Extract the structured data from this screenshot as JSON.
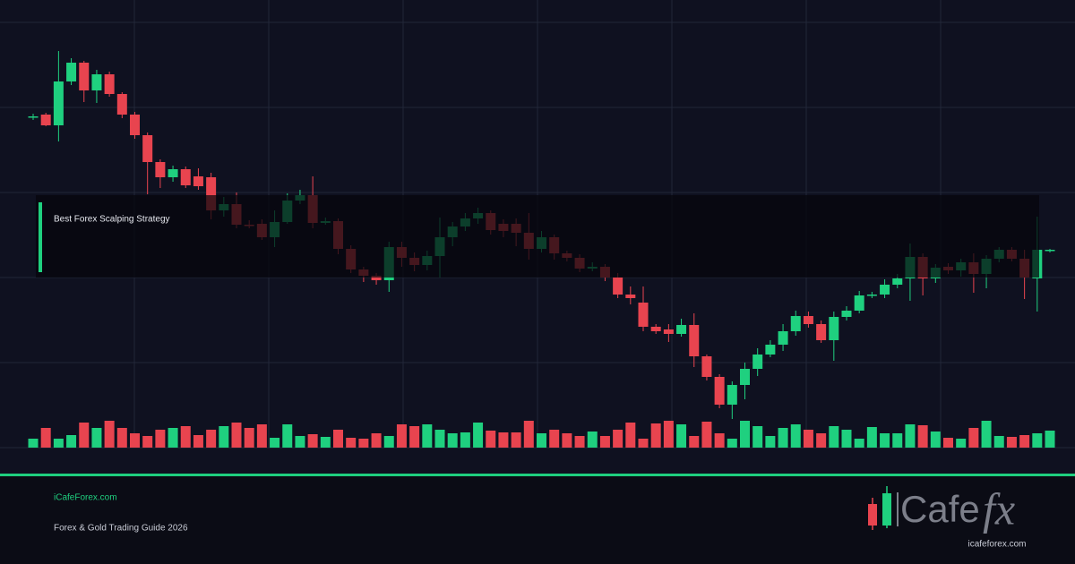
{
  "chart_data": {
    "type": "candlestick",
    "annotation": "Best Forex Scalping Strategy",
    "up_color": "#1fd07f",
    "down_color": "#e8444f",
    "ylim": [
      0,
      475
    ],
    "vlim": [
      0,
      40
    ],
    "grid": true,
    "open": [
      370,
      372,
      360,
      409,
      430,
      399,
      417,
      395,
      372,
      349,
      319,
      302,
      311,
      303,
      302,
      265,
      272,
      249,
      250,
      235,
      252,
      276,
      282,
      251,
      253,
      222,
      199,
      192,
      187,
      224,
      212,
      204,
      214,
      235,
      247,
      256,
      262,
      250,
      250,
      240,
      222,
      235,
      217,
      212,
      200,
      202,
      190,
      171,
      162,
      135,
      132,
      127,
      137,
      102,
      79,
      48,
      70,
      88,
      104,
      115,
      130,
      147,
      138,
      120,
      146,
      153,
      170,
      171,
      182,
      189,
      213,
      189,
      202,
      198,
      207,
      194,
      211,
      221,
      211,
      189,
      220
    ],
    "high": [
      373,
      374,
      443,
      435,
      432,
      422,
      420,
      397,
      375,
      352,
      322,
      315,
      314,
      312,
      307,
      280,
      285,
      254,
      255,
      265,
      284,
      288,
      303,
      257,
      256,
      226,
      202,
      195,
      230,
      230,
      218,
      220,
      257,
      252,
      262,
      268,
      265,
      255,
      256,
      262,
      242,
      238,
      220,
      216,
      207,
      205,
      195,
      180,
      180,
      138,
      138,
      144,
      150,
      104,
      82,
      74,
      95,
      111,
      120,
      138,
      153,
      152,
      142,
      152,
      158,
      175,
      174,
      188,
      194,
      228,
      217,
      205,
      206,
      211,
      217,
      215,
      224,
      224,
      221,
      258,
      222
    ],
    "low": [
      366,
      359,
      342,
      405,
      386,
      385,
      392,
      368,
      345,
      283,
      290,
      297,
      290,
      288,
      255,
      258,
      245,
      245,
      232,
      224,
      250,
      272,
      245,
      249,
      216,
      195,
      185,
      182,
      174,
      202,
      197,
      198,
      190,
      225,
      242,
      250,
      238,
      235,
      225,
      210,
      218,
      210,
      208,
      196,
      197,
      186,
      167,
      160,
      130,
      127,
      118,
      124,
      90,
      75,
      44,
      32,
      54,
      80,
      101,
      108,
      125,
      134,
      117,
      97,
      142,
      150,
      167,
      167,
      178,
      164,
      170,
      184,
      194,
      191,
      173,
      178,
      207,
      208,
      166,
      152,
      218
    ],
    "close": [
      370,
      360,
      409,
      430,
      399,
      417,
      395,
      372,
      349,
      319,
      302,
      311,
      293,
      292,
      265,
      272,
      249,
      248,
      235,
      252,
      276,
      282,
      251,
      253,
      222,
      199,
      192,
      187,
      224,
      212,
      204,
      214,
      235,
      247,
      256,
      262,
      243,
      242,
      240,
      222,
      235,
      217,
      212,
      200,
      202,
      190,
      171,
      167,
      135,
      130,
      127,
      137,
      102,
      79,
      48,
      70,
      88,
      104,
      115,
      130,
      147,
      138,
      120,
      146,
      153,
      170,
      171,
      182,
      189,
      213,
      189,
      201,
      198,
      207,
      194,
      211,
      221,
      211,
      190,
      221,
      221
    ],
    "volume": [
      10,
      22,
      10,
      14,
      28,
      22,
      30,
      22,
      16,
      13,
      20,
      22,
      24,
      14,
      20,
      24,
      28,
      22,
      26,
      11,
      26,
      13,
      15,
      12,
      20,
      11,
      10,
      16,
      13,
      26,
      24,
      26,
      20,
      16,
      17,
      28,
      19,
      17,
      17,
      30,
      16,
      20,
      16,
      13,
      18,
      13,
      20,
      28,
      10,
      27,
      30,
      26,
      13,
      29,
      16,
      10,
      30,
      24,
      13,
      22,
      26,
      20,
      16,
      24,
      20,
      10,
      23,
      16,
      16,
      26,
      25,
      18,
      11,
      10,
      22,
      30,
      13,
      12,
      14,
      16,
      19
    ]
  },
  "footer": {
    "site": "iCafeForex.com",
    "subtitle": "Forex & Gold Trading Guide 2026",
    "logo_main": "Cafe",
    "logo_accent": "fx",
    "logo_url": "icafeforex.com"
  }
}
